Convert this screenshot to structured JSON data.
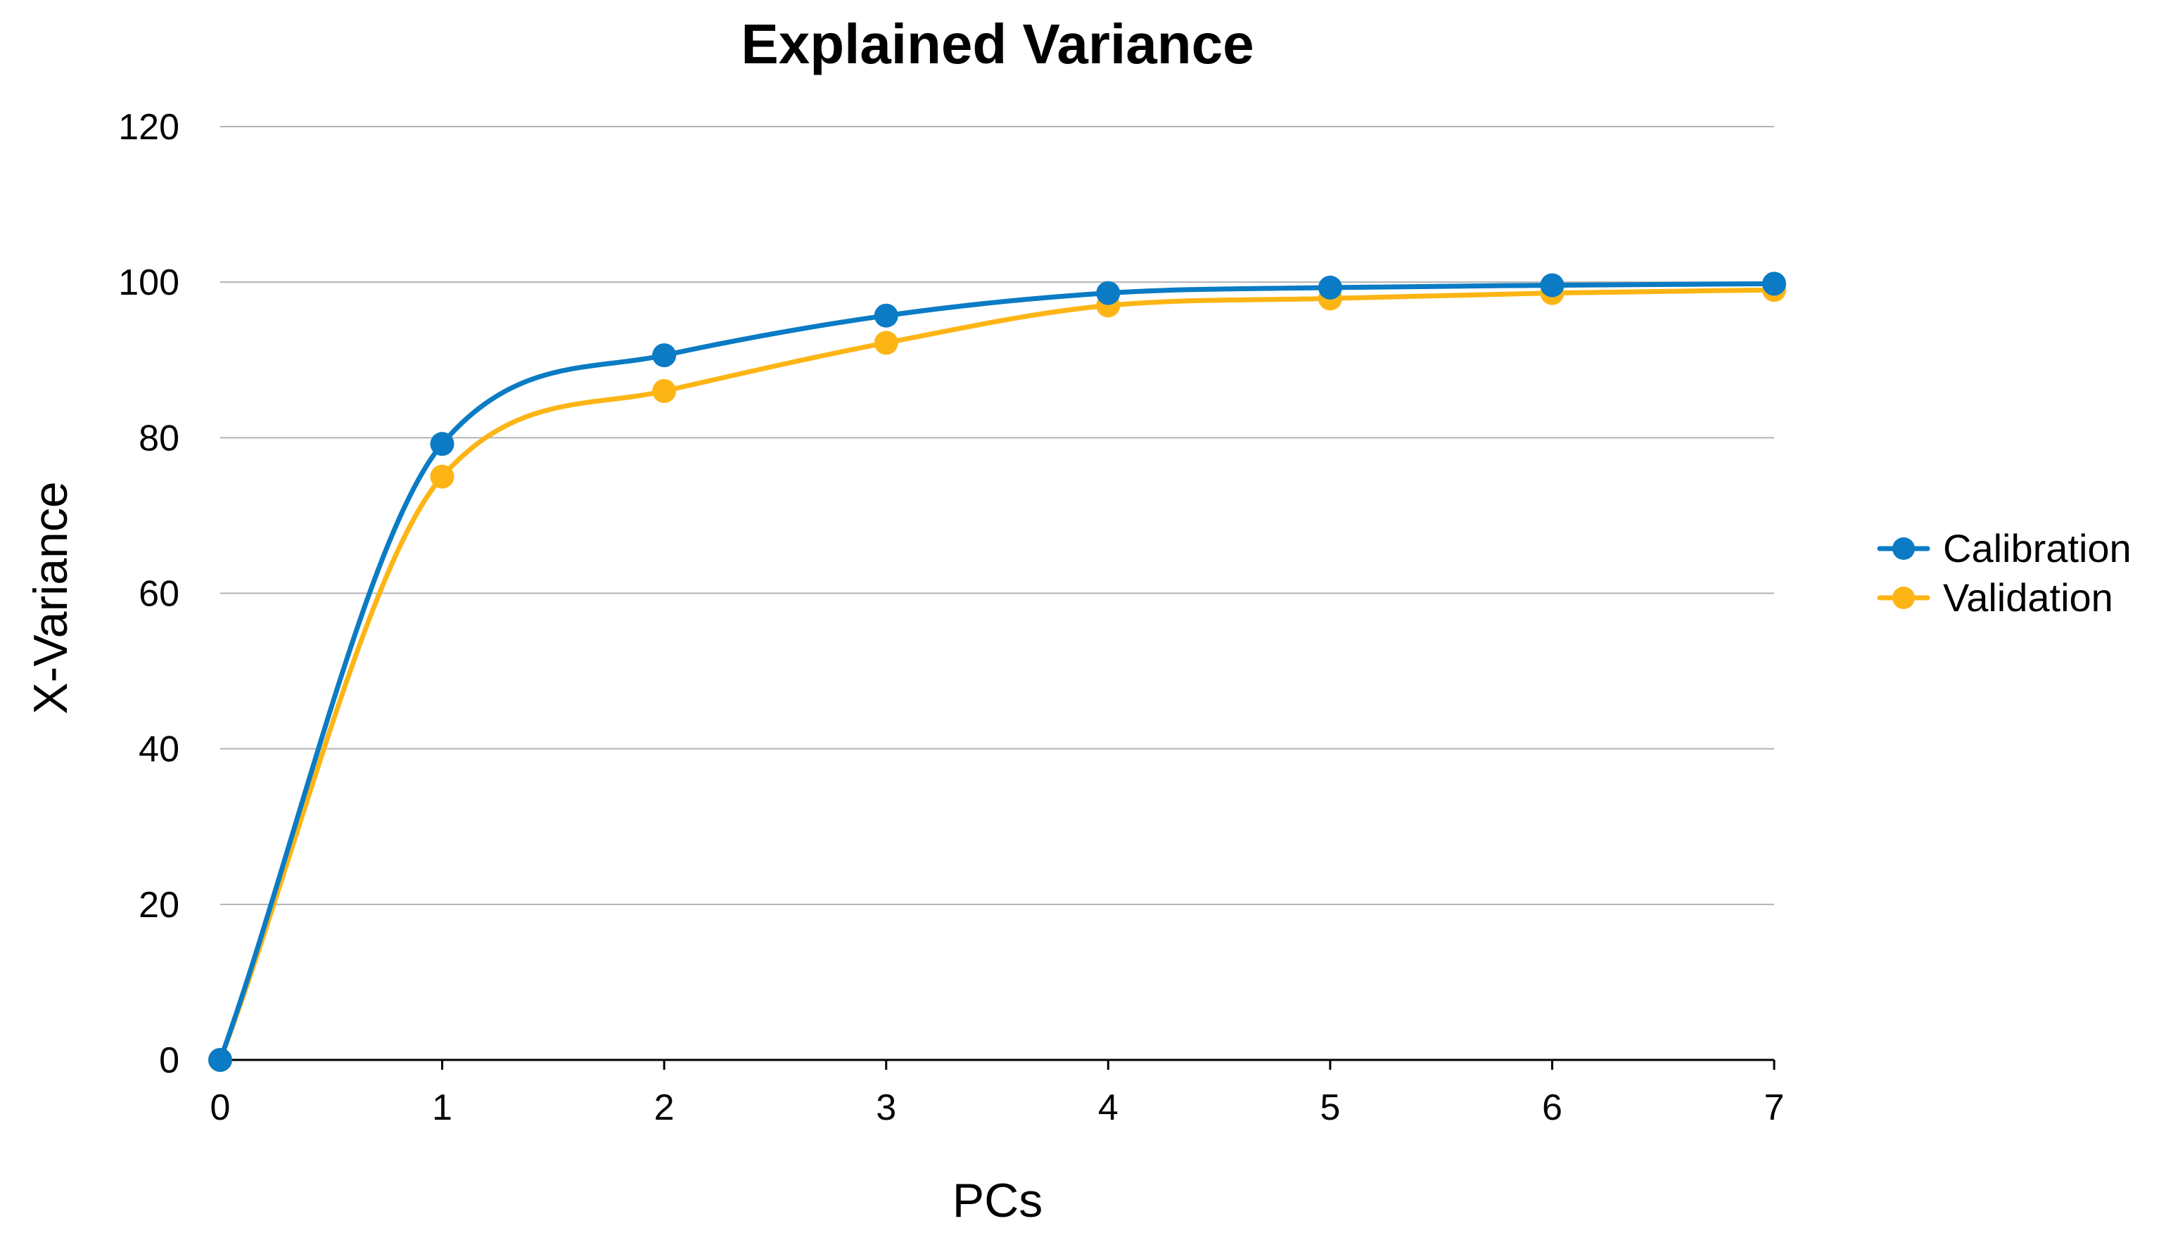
{
  "chart_data": {
    "type": "line",
    "title": "Explained Variance",
    "xlabel": "PCs",
    "ylabel": "X-Variance",
    "x": [
      0,
      1,
      2,
      3,
      4,
      5,
      6,
      7
    ],
    "xlim": [
      0,
      7
    ],
    "ylim": [
      0,
      120
    ],
    "xticks": [
      "0",
      "1",
      "2",
      "3",
      "4",
      "5",
      "6",
      "7"
    ],
    "yticks": [
      "0",
      "20",
      "40",
      "60",
      "80",
      "100",
      "120"
    ],
    "grid": true,
    "smooth": true,
    "legend_position": "right",
    "series": [
      {
        "name": "Calibration",
        "color": "#0A7BC4",
        "values": [
          0,
          79.2,
          90.6,
          95.7,
          98.6,
          99.3,
          99.6,
          99.8
        ]
      },
      {
        "name": "Validation",
        "color": "#FDB515",
        "values": [
          0,
          75.0,
          86.0,
          92.2,
          97.0,
          97.9,
          98.6,
          99.0
        ]
      }
    ]
  }
}
